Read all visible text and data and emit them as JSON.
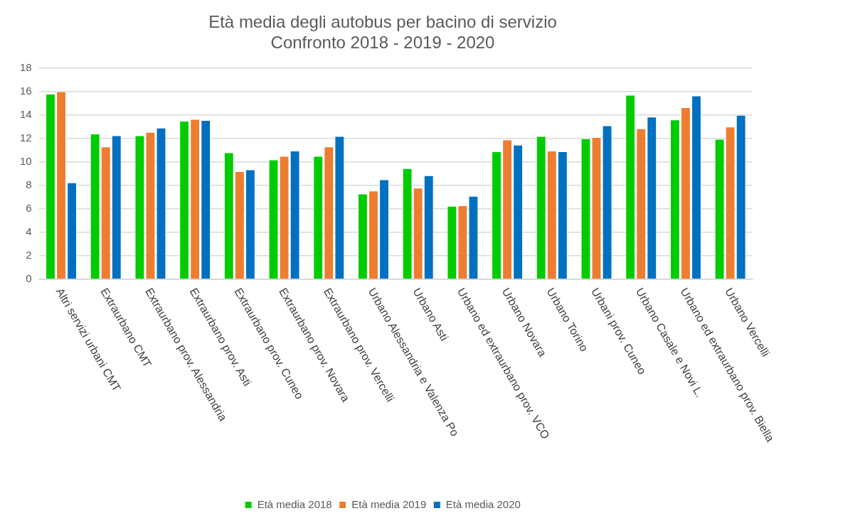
{
  "chart_data": {
    "type": "bar",
    "title": [
      "Età media degli autobus per bacino di servizio",
      "Confronto 2018 - 2019 - 2020"
    ],
    "categories": [
      "Altri servizi urbani CMT",
      "Extraurbano CMT",
      "Extraurbano prov. Alessandria",
      "Extraurbano prov. Asti",
      "Extraurbano prov. Cuneo",
      "Extraurbano prov. Novara",
      "Extraurbano prov. Vercelli",
      "Urbano Alessandria e Valenza Po",
      "Urbano Asti",
      "Urbano ed extraurbano prov. VCO",
      "Urbano Novara",
      "Urbano Torino",
      "Urbani prov. Cuneo",
      "Urbano Casale e Novi L.",
      "Urbano ed extraurbano prov. Biella",
      "Urbano Vercelli"
    ],
    "series": [
      {
        "name": "Età media 2018",
        "color": "#00cc00",
        "values": [
          15.8,
          12.4,
          12.25,
          13.5,
          10.8,
          10.2,
          10.5,
          7.3,
          9.45,
          6.25,
          10.9,
          12.2,
          12.0,
          15.7,
          13.6,
          11.95
        ]
      },
      {
        "name": "Età media 2019",
        "color": "#ed7d31",
        "values": [
          16.0,
          11.3,
          12.55,
          13.65,
          9.2,
          10.5,
          11.3,
          7.55,
          7.8,
          6.3,
          11.9,
          10.95,
          12.1,
          12.85,
          14.65,
          13.0
        ]
      },
      {
        "name": "Età media 2020",
        "color": "#0070c0",
        "values": [
          8.25,
          12.25,
          12.9,
          13.55,
          9.35,
          10.95,
          12.2,
          8.5,
          8.85,
          7.1,
          11.45,
          10.9,
          13.1,
          13.85,
          15.65,
          14.0
        ]
      }
    ],
    "ylim": [
      0,
      18
    ],
    "yticks": [
      0,
      2,
      4,
      6,
      8,
      10,
      12,
      14,
      16,
      18
    ],
    "grid": "y",
    "legend": "bottom"
  }
}
